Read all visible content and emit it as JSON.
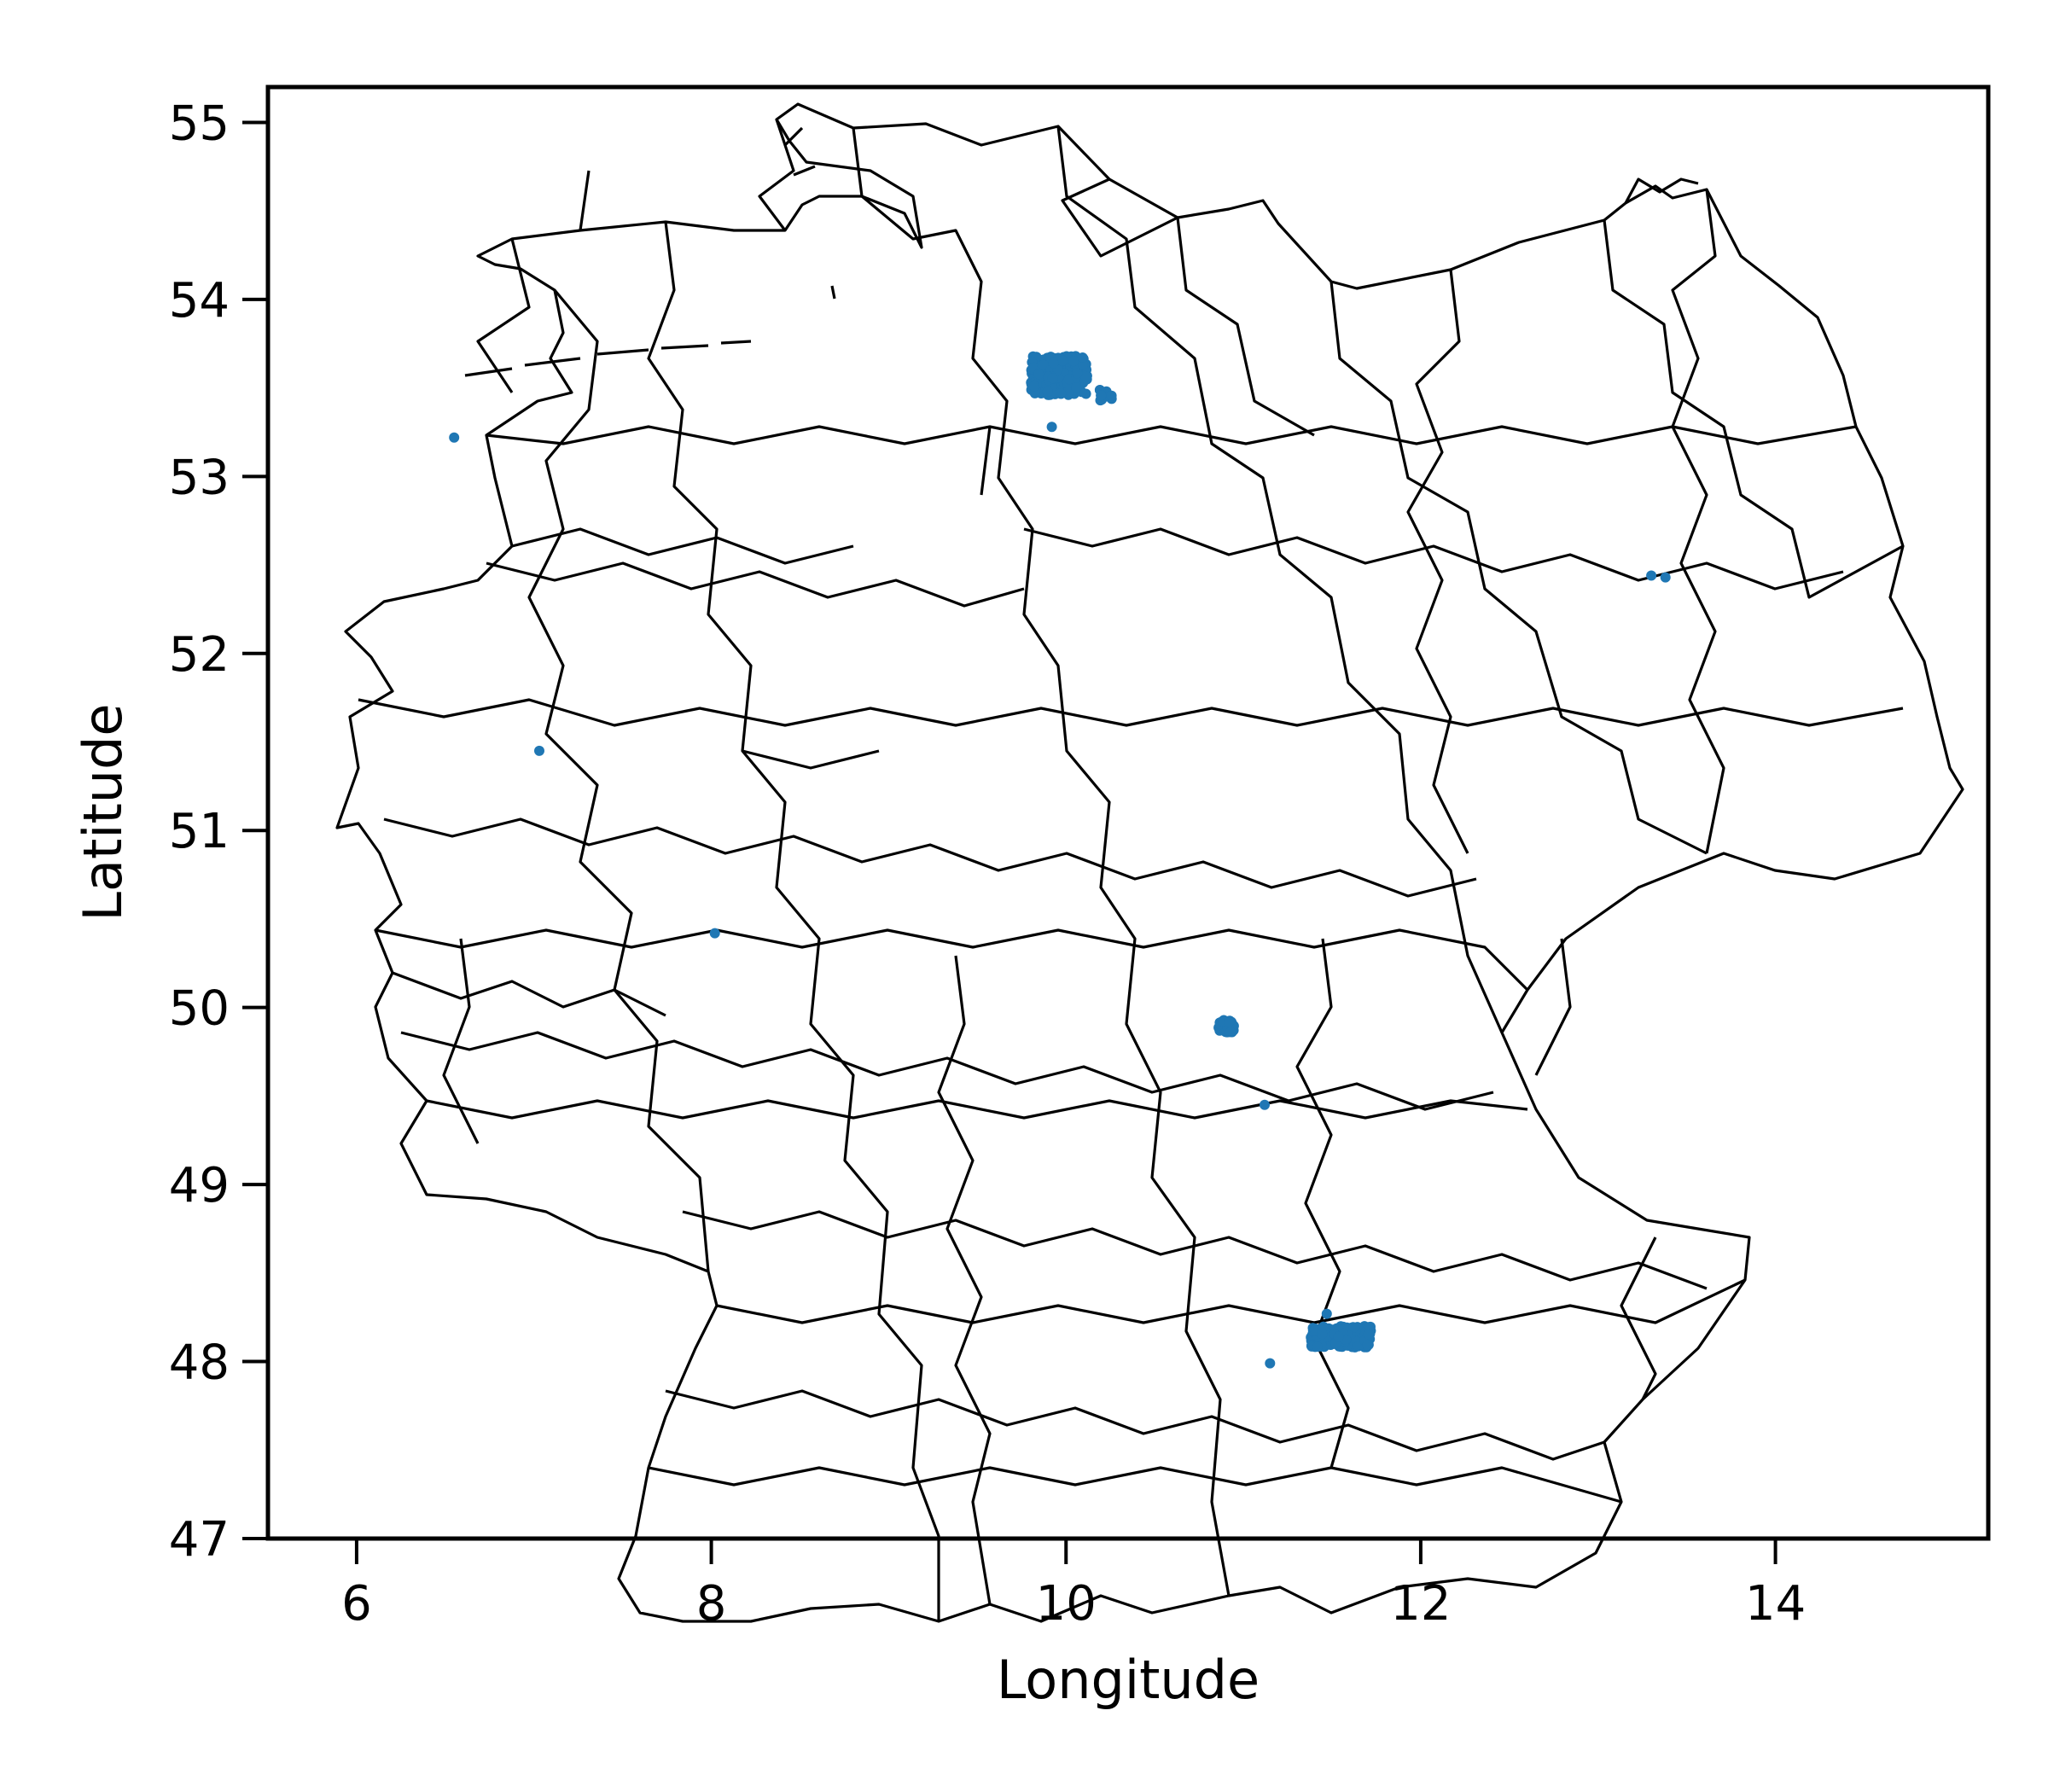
{
  "chart_data": {
    "type": "scatter",
    "xlabel": "Longitude",
    "ylabel": "Latitude",
    "xlim": [
      5.5,
      15.2
    ],
    "ylim": [
      47.0,
      55.2
    ],
    "xticks": [
      6,
      8,
      10,
      12,
      14
    ],
    "yticks": [
      47,
      48,
      49,
      50,
      51,
      52,
      53,
      54,
      55
    ],
    "grid": false,
    "legend": "none",
    "colors": {
      "points": "#1f77b4",
      "boundaries": "#000000",
      "background": "#ffffff"
    },
    "basemap": "german-district-boundaries",
    "series": [
      {
        "points": [
          [
            6.55,
            53.22
          ],
          [
            7.03,
            51.45
          ],
          [
            8.02,
            50.42
          ],
          [
            9.92,
            53.28
          ],
          [
            10.25,
            53.45
          ],
          [
            11.12,
            49.45
          ],
          [
            11.15,
            47.99
          ],
          [
            11.47,
            48.27
          ],
          [
            13.3,
            52.44
          ],
          [
            13.38,
            52.43
          ],
          [
            9.85,
            53.55
          ],
          [
            9.9,
            53.6
          ],
          [
            9.95,
            53.55
          ],
          [
            10.0,
            53.58
          ],
          [
            10.05,
            53.6
          ],
          [
            10.1,
            53.62
          ],
          [
            9.95,
            53.5
          ],
          [
            10.0,
            53.52
          ],
          [
            10.88,
            49.9
          ],
          [
            10.92,
            49.9
          ],
          [
            10.9,
            49.88
          ],
          [
            11.45,
            48.15
          ],
          [
            11.5,
            48.12
          ],
          [
            11.55,
            48.14
          ],
          [
            11.6,
            48.15
          ],
          [
            11.65,
            48.12
          ],
          [
            11.5,
            48.18
          ],
          [
            11.57,
            48.1
          ]
        ],
        "clusters": [
          {
            "lon": [
              9.8,
              10.12
            ],
            "lat": [
              53.46,
              53.68
            ],
            "n": 220
          },
          {
            "lon": [
              10.18,
              10.26
            ],
            "lat": [
              53.43,
              53.5
            ],
            "n": 12
          },
          {
            "lon": [
              10.86,
              10.95
            ],
            "lat": [
              49.86,
              49.93
            ],
            "n": 45
          },
          {
            "lon": [
              11.38,
              11.72
            ],
            "lat": [
              48.08,
              48.2
            ],
            "n": 200
          }
        ]
      }
    ]
  }
}
